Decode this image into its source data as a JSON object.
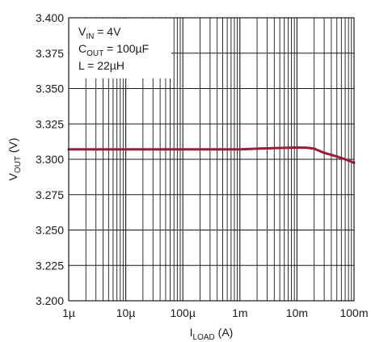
{
  "chart_data": {
    "type": "line",
    "title": "",
    "x_scale": "log",
    "xlim": [
      1e-06,
      0.1
    ],
    "ylim": [
      3.2,
      3.4
    ],
    "x_ticks": [
      {
        "value": 1e-06,
        "label": "1µ"
      },
      {
        "value": 1e-05,
        "label": "10µ"
      },
      {
        "value": 0.0001,
        "label": "100µ"
      },
      {
        "value": 0.001,
        "label": "1m"
      },
      {
        "value": 0.01,
        "label": "10m"
      },
      {
        "value": 0.1,
        "label": "100m"
      }
    ],
    "y_ticks": [
      {
        "value": 3.2,
        "label": "3.200"
      },
      {
        "value": 3.225,
        "label": "3.225"
      },
      {
        "value": 3.25,
        "label": "3.250"
      },
      {
        "value": 3.275,
        "label": "3.275"
      },
      {
        "value": 3.3,
        "label": "3.300"
      },
      {
        "value": 3.325,
        "label": "3.325"
      },
      {
        "value": 3.35,
        "label": "3.350"
      },
      {
        "value": 3.375,
        "label": "3.375"
      },
      {
        "value": 3.4,
        "label": "3.400"
      }
    ],
    "xlabel": {
      "main": "I",
      "sub": "LOAD",
      "tail": " (A)"
    },
    "ylabel": {
      "main": "V",
      "sub": "OUT",
      "tail": " (V)"
    },
    "grid": true,
    "legend_placement": "top-left",
    "annotation": [
      {
        "main": "V",
        "sub": "IN",
        "tail": " = 4V"
      },
      {
        "main": "C",
        "sub": "OUT",
        "tail": " = 100µF"
      },
      {
        "main": "L = 22µH",
        "sub": "",
        "tail": ""
      }
    ],
    "series": [
      {
        "color": "#9b1b3a",
        "x": [
          1e-06,
          1e-05,
          0.0001,
          0.001,
          0.002,
          0.005,
          0.01,
          0.015,
          0.02,
          0.03,
          0.05,
          0.07,
          0.1
        ],
        "y": [
          3.307,
          3.307,
          3.307,
          3.307,
          3.3075,
          3.308,
          3.3083,
          3.3082,
          3.3075,
          3.3045,
          3.302,
          3.3,
          3.2975
        ]
      }
    ]
  }
}
